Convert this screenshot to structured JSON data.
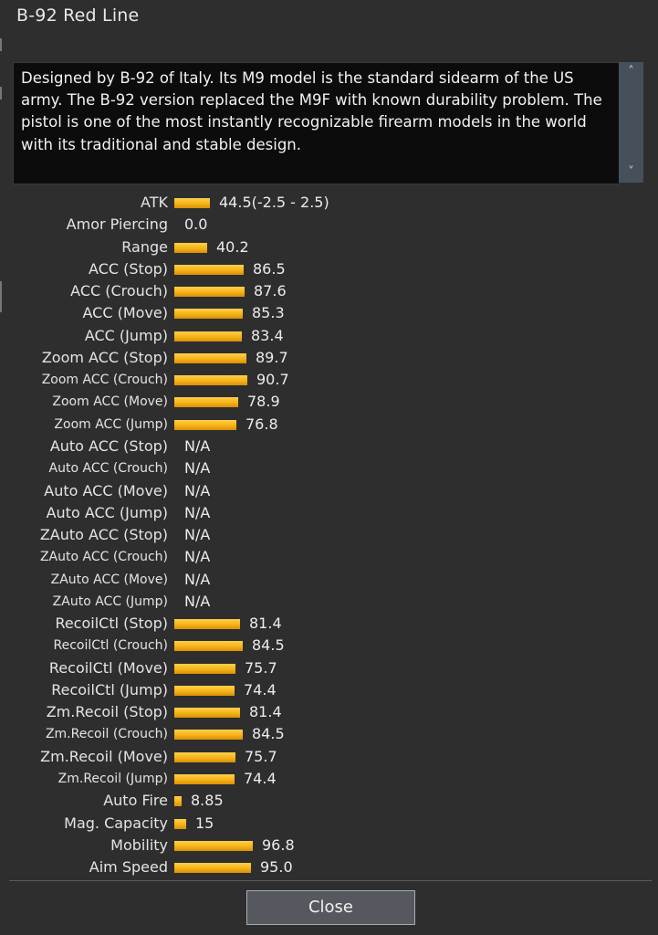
{
  "window": {
    "title": "B-92 Red Line"
  },
  "description": {
    "text": "Designed by B-92 of Italy. Its M9 model is the standard sidearm of the US army. The B-92 version replaced the M9F with known durability problem. The pistol is one of the most instantly recognizable firearm models in the world with its traditional and stable design.",
    "scroll_up_icon": "chevron-up-icon",
    "scroll_down_icon": "chevron-down-icon"
  },
  "stats": [
    {
      "label": "ATK",
      "value": "44.5(-2.5 - 2.5)",
      "level": 44.5
    },
    {
      "label": "Amor Piercing",
      "value": "0.0",
      "level": 0
    },
    {
      "label": "Range",
      "value": "40.2",
      "level": 40.2
    },
    {
      "label": "ACC (Stop)",
      "value": "86.5",
      "level": 86.5
    },
    {
      "label": "ACC (Crouch)",
      "value": "87.6",
      "level": 87.6
    },
    {
      "label": "ACC (Move)",
      "value": "85.3",
      "level": 85.3
    },
    {
      "label": "ACC (Jump)",
      "value": "83.4",
      "level": 83.4
    },
    {
      "label": "Zoom ACC (Stop)",
      "value": "89.7",
      "level": 89.7
    },
    {
      "label": "Zoom ACC (Crouch)",
      "value": "90.7",
      "level": 90.7,
      "small": true
    },
    {
      "label": "Zoom ACC (Move)",
      "value": "78.9",
      "level": 78.9,
      "small": true
    },
    {
      "label": "Zoom ACC (Jump)",
      "value": "76.8",
      "level": 76.8,
      "small": true
    },
    {
      "label": "Auto ACC (Stop)",
      "value": "N/A",
      "level": null
    },
    {
      "label": "Auto ACC (Crouch)",
      "value": "N/A",
      "level": null,
      "small": true
    },
    {
      "label": "Auto ACC (Move)",
      "value": "N/A",
      "level": null
    },
    {
      "label": "Auto ACC (Jump)",
      "value": "N/A",
      "level": null
    },
    {
      "label": "ZAuto ACC (Stop)",
      "value": "N/A",
      "level": null
    },
    {
      "label": "ZAuto ACC (Crouch)",
      "value": "N/A",
      "level": null,
      "small": true
    },
    {
      "label": "ZAuto ACC (Move)",
      "value": "N/A",
      "level": null,
      "small": true
    },
    {
      "label": "ZAuto ACC (Jump)",
      "value": "N/A",
      "level": null,
      "small": true
    },
    {
      "label": "RecoilCtl (Stop)",
      "value": "81.4",
      "level": 81.4
    },
    {
      "label": "RecoilCtl (Crouch)",
      "value": "84.5",
      "level": 84.5,
      "small": true
    },
    {
      "label": "RecoilCtl (Move)",
      "value": "75.7",
      "level": 75.7
    },
    {
      "label": "RecoilCtl (Jump)",
      "value": "74.4",
      "level": 74.4
    },
    {
      "label": "Zm.Recoil (Stop)",
      "value": "81.4",
      "level": 81.4
    },
    {
      "label": "Zm.Recoil (Crouch)",
      "value": "84.5",
      "level": 84.5,
      "small": true
    },
    {
      "label": "Zm.Recoil (Move)",
      "value": "75.7",
      "level": 75.7
    },
    {
      "label": "Zm.Recoil (Jump)",
      "value": "74.4",
      "level": 74.4,
      "small": true
    },
    {
      "label": "Auto Fire",
      "value": "8.85",
      "level": 8.85
    },
    {
      "label": "Mag. Capacity",
      "value": "15",
      "level": 15
    },
    {
      "label": "Mobility",
      "value": "96.8",
      "level": 96.8
    },
    {
      "label": "Aim Speed",
      "value": "95.0",
      "level": 95.0
    }
  ],
  "close_button": {
    "label": "Close"
  },
  "colors": {
    "bar": "#f5b318",
    "background": "#2e2e2e",
    "description_bg": "#0c0c0c"
  }
}
